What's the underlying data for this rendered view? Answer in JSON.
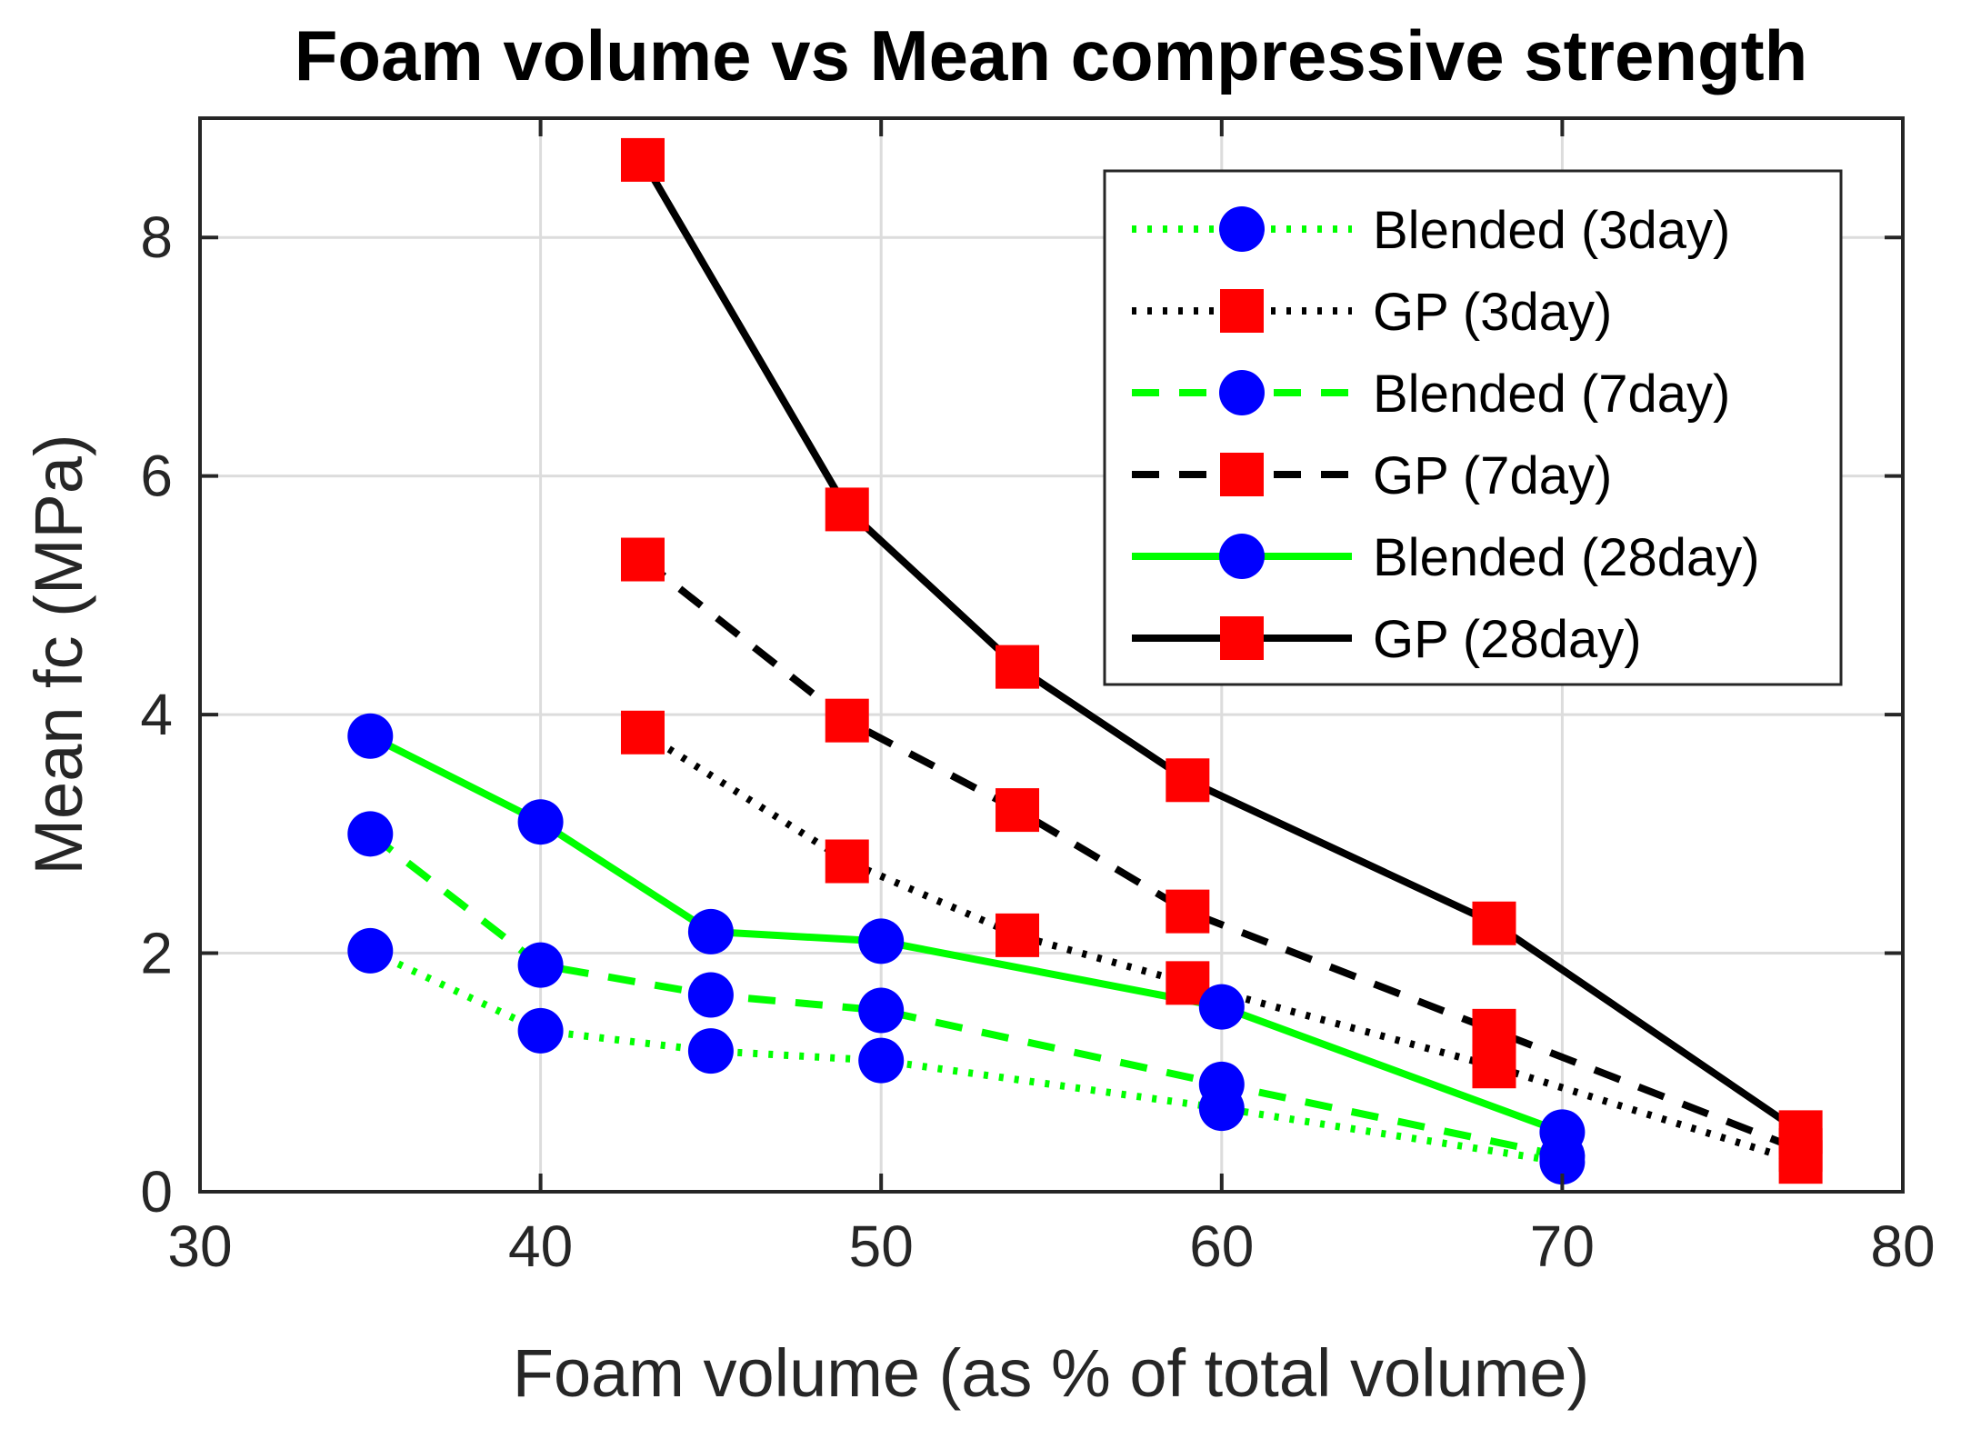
{
  "chart_data": {
    "type": "line",
    "title": "Foam volume vs Mean compressive strength",
    "xlabel": "Foam volume (as % of total volume)",
    "ylabel": "Mean fc (MPa)",
    "xlim": [
      30,
      80
    ],
    "ylim": [
      0,
      9
    ],
    "xticks": [
      30,
      40,
      50,
      60,
      70,
      80
    ],
    "yticks": [
      0,
      2,
      4,
      6,
      8
    ],
    "grid": true,
    "legend_position": "top-right",
    "series": [
      {
        "name": "Blended (3day)",
        "color": "#00ff00",
        "marker_color": "#0000ff",
        "marker": "circle",
        "line_style": "dotted",
        "x": [
          35,
          40,
          45,
          50,
          60,
          70
        ],
        "y": [
          2.02,
          1.35,
          1.18,
          1.1,
          0.7,
          0.25
        ]
      },
      {
        "name": "GP (3day)",
        "color": "#000000",
        "marker_color": "#ff0000",
        "marker": "square",
        "line_style": "dotted",
        "x": [
          43,
          49,
          54,
          59,
          68,
          77
        ],
        "y": [
          3.85,
          2.77,
          2.15,
          1.75,
          1.05,
          0.25
        ]
      },
      {
        "name": "Blended (7day)",
        "color": "#00ff00",
        "marker_color": "#0000ff",
        "marker": "circle",
        "line_style": "dashed",
        "x": [
          35,
          40,
          45,
          50,
          60,
          70
        ],
        "y": [
          3.0,
          1.9,
          1.65,
          1.52,
          0.9,
          0.3
        ]
      },
      {
        "name": "GP (7day)",
        "color": "#000000",
        "marker_color": "#ff0000",
        "marker": "square",
        "line_style": "dashed",
        "x": [
          43,
          49,
          54,
          59,
          68,
          77
        ],
        "y": [
          5.3,
          3.95,
          3.2,
          2.35,
          1.35,
          0.35
        ]
      },
      {
        "name": "Blended (28day)",
        "color": "#00ff00",
        "marker_color": "#0000ff",
        "marker": "circle",
        "line_style": "solid",
        "x": [
          35,
          40,
          45,
          50,
          60,
          70
        ],
        "y": [
          3.82,
          3.1,
          2.18,
          2.1,
          1.55,
          0.5
        ]
      },
      {
        "name": "GP (28day)",
        "color": "#000000",
        "marker_color": "#ff0000",
        "marker": "square",
        "line_style": "solid",
        "x": [
          43,
          49,
          54,
          59,
          68,
          77
        ],
        "y": [
          8.65,
          5.72,
          4.4,
          3.45,
          2.25,
          0.5
        ]
      }
    ]
  }
}
